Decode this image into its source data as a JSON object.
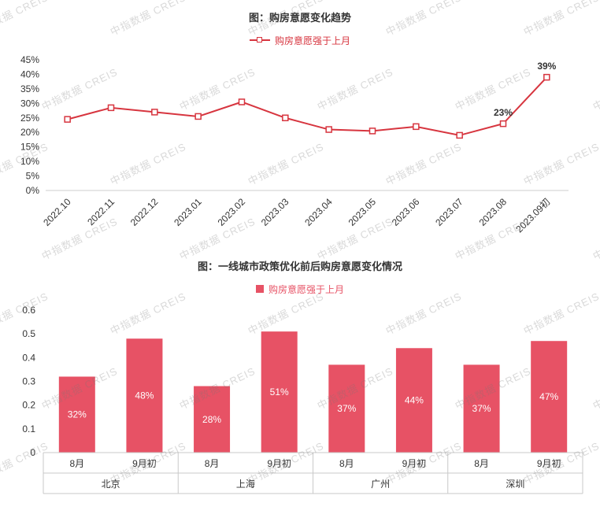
{
  "watermark": "中指数据 CREIS",
  "chart_data": [
    {
      "type": "line",
      "title": "图：购房意愿变化趋势",
      "legend_position": "top",
      "series": [
        {
          "name": "购房意愿强于上月",
          "values": [
            24.5,
            28.5,
            27,
            25.5,
            30.5,
            25,
            21,
            20.5,
            22,
            19,
            23,
            39
          ]
        }
      ],
      "categories": [
        "2022.10",
        "2022.11",
        "2022.12",
        "2023.01",
        "2023.02",
        "2023.03",
        "2023.04",
        "2023.05",
        "2023.06",
        "2023.07",
        "2023.08",
        "2023.09初"
      ],
      "yticks": [
        "0%",
        "5%",
        "10%",
        "15%",
        "20%",
        "25%",
        "30%",
        "35%",
        "40%",
        "45%"
      ],
      "ylim": [
        0,
        45
      ],
      "ytick_step": 5,
      "grid": "off",
      "point_labels": {
        "10": "23%",
        "11": "39%"
      },
      "color": "#d7353f"
    },
    {
      "type": "bar",
      "title": "图：一线城市政策优化前后购房意愿变化情况",
      "legend_position": "top",
      "series": [
        {
          "name": "购房意愿强于上月",
          "values": [
            0.32,
            0.48,
            0.28,
            0.51,
            0.37,
            0.44,
            0.37,
            0.47
          ]
        }
      ],
      "bar_labels": [
        "32%",
        "48%",
        "28%",
        "51%",
        "37%",
        "44%",
        "37%",
        "47%"
      ],
      "group_categories": [
        "北京",
        "上海",
        "广州",
        "深圳"
      ],
      "sub_categories": [
        "8月",
        "9月初"
      ],
      "yticks": [
        "0",
        "0.1",
        "0.2",
        "0.3",
        "0.4",
        "0.5",
        "0.6"
      ],
      "ylim": [
        0,
        0.6
      ],
      "ytick_step": 0.1,
      "grid": "off",
      "color": "#e75265"
    }
  ]
}
